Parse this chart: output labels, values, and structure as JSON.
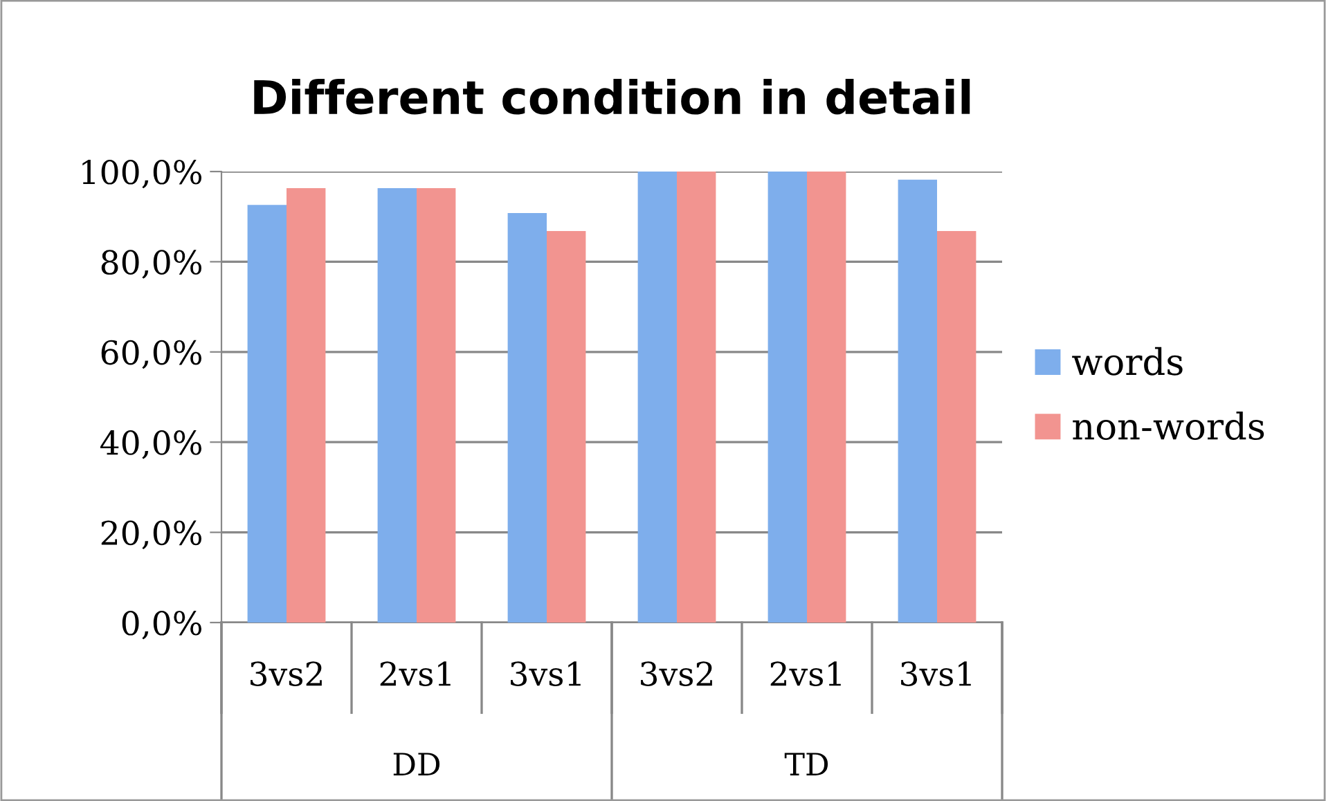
{
  "chart_data": {
    "type": "bar",
    "title": "Different condition in detail",
    "categories": [
      "3vs2",
      "2vs1",
      "3vs1",
      "3vs2",
      "2vs1",
      "3vs1"
    ],
    "series": [
      {
        "name": "words",
        "color": "#7eaeec",
        "values": [
          92.6,
          96.3,
          90.8,
          100,
          100,
          98.2
        ]
      },
      {
        "name": "non-words",
        "color": "#f29490",
        "values": [
          96.3,
          96.3,
          86.8,
          100,
          100,
          86.8
        ]
      }
    ],
    "annotations": [
      "DD",
      "TD"
    ],
    "ylim": [
      0,
      100
    ],
    "yticks": [
      {
        "value": 0,
        "label": "0,0%"
      },
      {
        "value": 20,
        "label": "20,0%"
      },
      {
        "value": 40,
        "label": "40,0%"
      },
      {
        "value": 60,
        "label": "60,0%"
      },
      {
        "value": 80,
        "label": "80,0%"
      },
      {
        "value": 100,
        "label": "100,0%"
      }
    ],
    "grid": "y",
    "legend": "right"
  }
}
